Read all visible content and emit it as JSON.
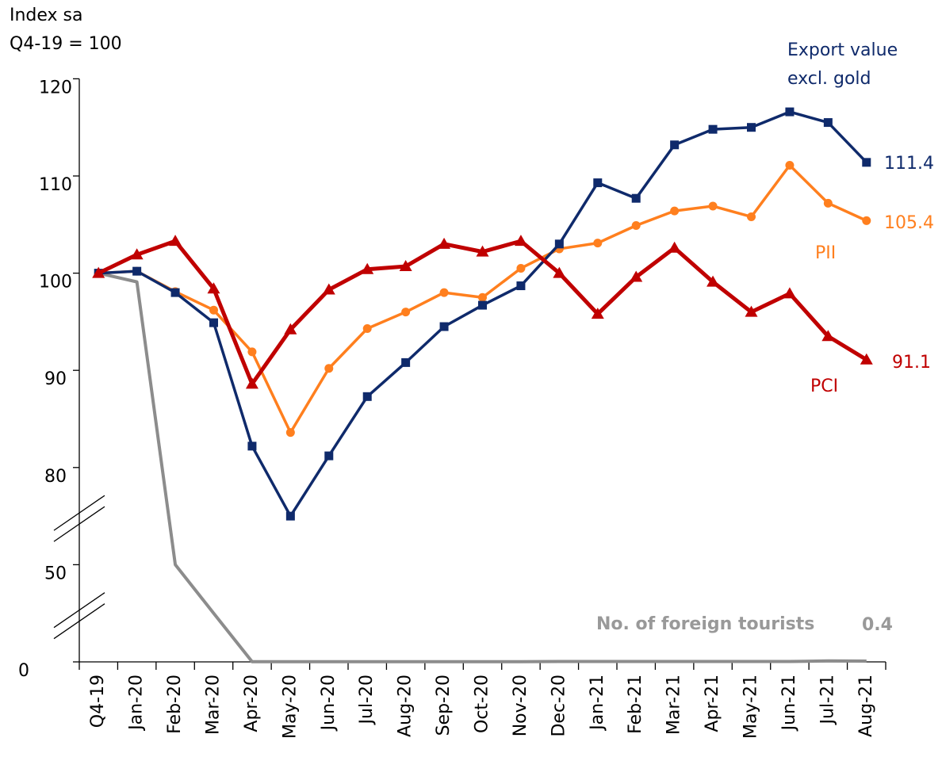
{
  "chart_data": {
    "type": "line",
    "y_label": "Index sa\nQ4-19 = 100",
    "categories": [
      "Q4-19",
      "Jan-20",
      "Feb-20",
      "Mar-20",
      "Apr-20",
      "May-20",
      "Jun-20",
      "Jul-20",
      "Aug-20",
      "Sep-20",
      "Oct-20",
      "Nov-20",
      "Dec-20",
      "Jan-21",
      "Feb-21",
      "Mar-21",
      "Apr-21",
      "May-21",
      "Jun-21",
      "Jul-21",
      "Aug-21"
    ],
    "yticks": [
      0,
      50,
      80,
      90,
      100,
      110,
      120
    ],
    "ylim": [
      0,
      120
    ],
    "y_scale": "broken",
    "series": [
      {
        "name": "Export value\nexcl. gold",
        "color": "#0f2a6b",
        "marker": "square",
        "values": [
          100,
          100.2,
          98.0,
          94.9,
          82.2,
          65,
          81.2,
          87.3,
          90.8,
          94.5,
          96.7,
          98.7,
          103.0,
          109.3,
          107.7,
          113.2,
          114.8,
          115.0,
          116.6,
          115.5,
          111.4
        ]
      },
      {
        "name": "PII",
        "color": "#ff7f1e",
        "marker": "circle",
        "values": [
          100,
          100.2,
          98.1,
          96.2,
          91.9,
          83.6,
          90.2,
          94.3,
          96.0,
          98.0,
          97.5,
          100.5,
          102.5,
          103.1,
          104.9,
          106.4,
          106.9,
          105.8,
          111.1,
          107.2,
          105.4
        ]
      },
      {
        "name": "PCI",
        "color": "#c00000",
        "marker": "triangle",
        "values": [
          100,
          101.9,
          103.3,
          98.4,
          88.6,
          94.2,
          98.3,
          100.4,
          100.7,
          103.0,
          102.2,
          103.3,
          100.0,
          95.8,
          99.6,
          102.6,
          99.1,
          96.0,
          97.9,
          93.5,
          91.1
        ]
      },
      {
        "name": "No. of foreign tourists",
        "color": "#8c8c8c",
        "marker": "none",
        "values": [
          100,
          99.1,
          50,
          25,
          0.1,
          0.1,
          0.1,
          0.1,
          0.1,
          0.1,
          0.1,
          0.1,
          0.2,
          0.2,
          0.2,
          0.2,
          0.2,
          0.2,
          0.2,
          0.5,
          0.4
        ]
      }
    ]
  }
}
